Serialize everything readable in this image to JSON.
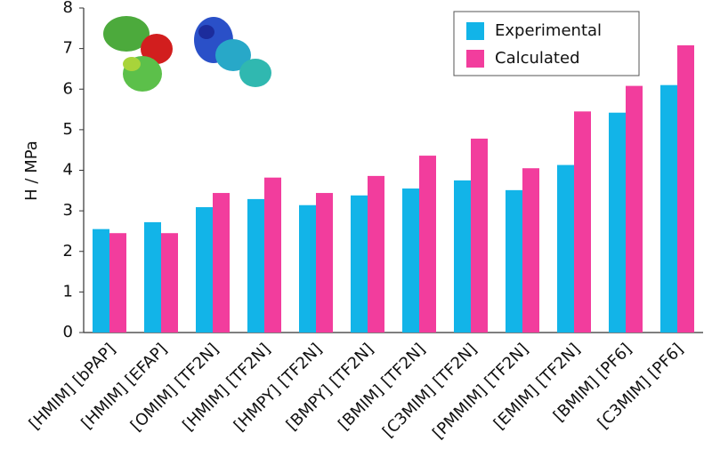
{
  "chart_data": {
    "type": "bar",
    "y_label": "H / MPa",
    "categories": [
      "[HMIM] [bPAP]",
      "[HMIM] [EFAP]",
      "[OMIM] [TF2N]",
      "[HMIM] [TF2N]",
      "[HMPY] [TF2N]",
      "[BMPY] [TF2N]",
      "[BMIM] [TF2N]",
      "[C3MIM] [TF2N]",
      "[PMMIM] [TF2N]",
      "[EMIM] [TF2N]",
      "[BMIM] [PF6]",
      "[C3MIM] [PF6]"
    ],
    "series": [
      {
        "name": "Experimental",
        "color": "#12b4e8",
        "values": [
          2.55,
          2.72,
          3.09,
          3.29,
          3.14,
          3.38,
          3.55,
          3.75,
          3.51,
          4.13,
          5.42,
          6.1
        ]
      },
      {
        "name": "Calculated",
        "color": "#f23d9d",
        "values": [
          2.45,
          2.45,
          3.44,
          3.82,
          3.44,
          3.86,
          4.36,
          4.78,
          4.05,
          5.45,
          6.08,
          7.08
        ]
      }
    ],
    "ylim": [
      0,
      8
    ],
    "yticks": [
      0,
      1,
      2,
      3,
      4,
      5,
      6,
      7,
      8
    ],
    "legend": "top-right"
  }
}
